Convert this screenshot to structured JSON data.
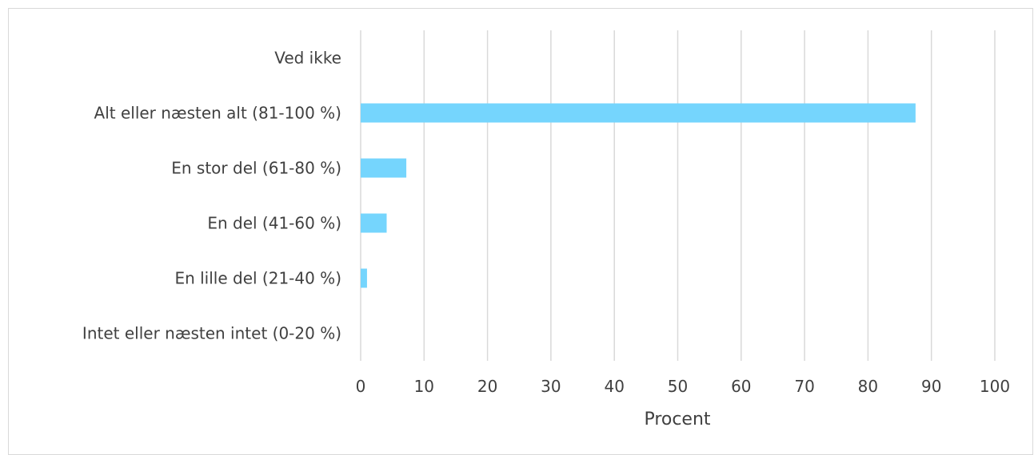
{
  "chart_data": {
    "type": "bar",
    "orientation": "horizontal",
    "categories": [
      "Ved ikke",
      "Alt eller næsten alt (81-100 %)",
      "En stor del (61-80 %)",
      "En del (41-60 %)",
      "En lille del (21-40 %)",
      "Intet eller næsten intet (0-20 %)"
    ],
    "values": [
      0,
      87.5,
      7.2,
      4.1,
      1.0,
      0
    ],
    "xlabel": "Procent",
    "ylabel": "",
    "xlim": [
      0,
      100
    ],
    "xticks": [
      "0",
      "10",
      "20",
      "30",
      "40",
      "50",
      "60",
      "70",
      "80",
      "90",
      "100"
    ],
    "grid": true,
    "bar_color": "#75d5fd",
    "grid_color": "#d9d9d9"
  }
}
